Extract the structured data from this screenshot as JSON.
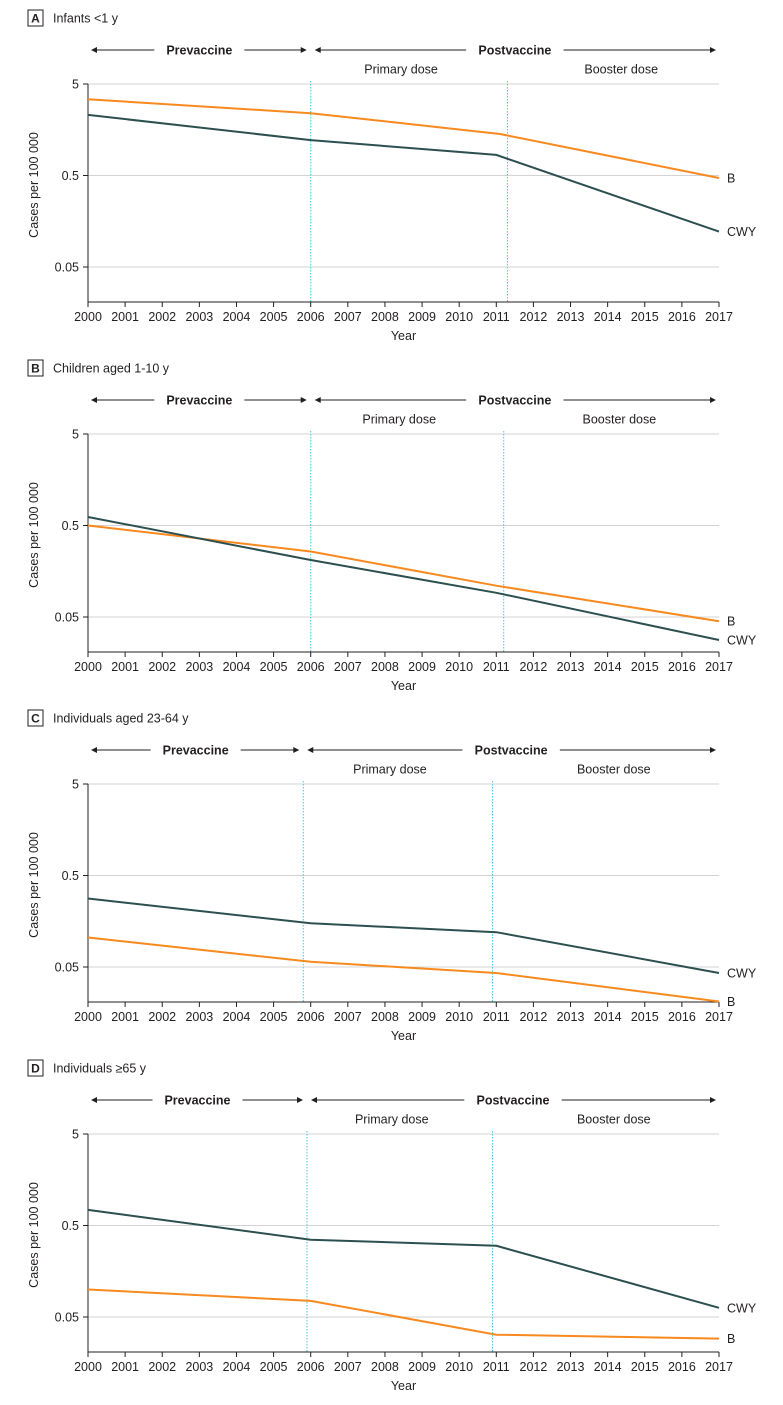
{
  "chart_data": [
    {
      "type": "line",
      "panel_label": "A",
      "title": "Infants <1 y",
      "xlabel": "Year",
      "ylabel": "Cases per 100 000",
      "y_scale": "log",
      "ylim": [
        0.02,
        5
      ],
      "yticks": [
        5,
        0.5,
        0.05
      ],
      "ytick_labels": [
        "5",
        "0.5",
        "0.05"
      ],
      "x": [
        2000,
        2001,
        2002,
        2003,
        2004,
        2005,
        2006,
        2007,
        2008,
        2009,
        2010,
        2011,
        2012,
        2013,
        2014,
        2015,
        2016,
        2017
      ],
      "x_tick_labels": [
        "2000",
        "2001",
        "2002",
        "2003",
        "2004",
        "2005",
        "2006",
        "2007",
        "2008",
        "2009",
        "2010",
        "2011",
        "2012",
        "2013",
        "2014",
        "2015",
        "2016",
        "2017"
      ],
      "period_labels": {
        "prevaccine": "Prevaccine",
        "postvaccine": "Postvaccine",
        "primary": "Primary dose",
        "booster": "Booster dose"
      },
      "vlines": [
        2006.0,
        2011.3
      ],
      "series": [
        {
          "name": "B",
          "color": "#f7891f",
          "points": [
            [
              2000,
              3.4
            ],
            [
              2006,
              2.4
            ],
            [
              2011.1,
              1.42
            ],
            [
              2017,
              0.47
            ]
          ]
        },
        {
          "name": "CWY",
          "color": "#2c4f50",
          "points": [
            [
              2000,
              2.3
            ],
            [
              2006,
              1.22
            ],
            [
              2011,
              0.84
            ],
            [
              2017,
              0.122
            ]
          ]
        }
      ]
    },
    {
      "type": "line",
      "panel_label": "B",
      "title": "Children aged 1-10 y",
      "xlabel": "Year",
      "ylabel": "Cases per 100 000",
      "y_scale": "log",
      "ylim": [
        0.02,
        5
      ],
      "yticks": [
        5,
        0.5,
        0.05
      ],
      "ytick_labels": [
        "5",
        "0.5",
        "0.05"
      ],
      "x": [
        2000,
        2001,
        2002,
        2003,
        2004,
        2005,
        2006,
        2007,
        2008,
        2009,
        2010,
        2011,
        2012,
        2013,
        2014,
        2015,
        2016,
        2017
      ],
      "x_tick_labels": [
        "2000",
        "2001",
        "2002",
        "2003",
        "2004",
        "2005",
        "2006",
        "2007",
        "2008",
        "2009",
        "2010",
        "2011",
        "2012",
        "2013",
        "2014",
        "2015",
        "2016",
        "2017"
      ],
      "period_labels": {
        "prevaccine": "Prevaccine",
        "postvaccine": "Postvaccine",
        "primary": "Primary dose",
        "booster": "Booster dose"
      },
      "vlines": [
        2006.0,
        2011.2
      ],
      "series": [
        {
          "name": "B",
          "color": "#f7891f",
          "points": [
            [
              2000,
              0.5
            ],
            [
              2006,
              0.26
            ],
            [
              2011,
              0.11
            ],
            [
              2017,
              0.045
            ]
          ]
        },
        {
          "name": "CWY",
          "color": "#2c4f50",
          "points": [
            [
              2000,
              0.62
            ],
            [
              2006,
              0.21
            ],
            [
              2011,
              0.092
            ],
            [
              2017,
              0.028
            ]
          ]
        }
      ]
    },
    {
      "type": "line",
      "panel_label": "C",
      "title": "Individuals aged 23-64 y",
      "xlabel": "Year",
      "ylabel": "Cases per 100 000",
      "y_scale": "log",
      "ylim": [
        0.02,
        5
      ],
      "yticks": [
        5,
        0.5,
        0.05
      ],
      "ytick_labels": [
        "5",
        "0.5",
        "0.05"
      ],
      "x": [
        2000,
        2001,
        2002,
        2003,
        2004,
        2005,
        2006,
        2007,
        2008,
        2009,
        2010,
        2011,
        2012,
        2013,
        2014,
        2015,
        2016,
        2017
      ],
      "x_tick_labels": [
        "2000",
        "2001",
        "2002",
        "2003",
        "2004",
        "2005",
        "2006",
        "2007",
        "2008",
        "2009",
        "2010",
        "2011",
        "2012",
        "2013",
        "2014",
        "2015",
        "2016",
        "2017"
      ],
      "period_labels": {
        "prevaccine": "Prevaccine",
        "postvaccine": "Postvaccine",
        "primary": "Primary dose",
        "booster": "Booster dose"
      },
      "vlines": [
        2005.8,
        2010.9
      ],
      "series": [
        {
          "name": "B",
          "color": "#f7891f",
          "points": [
            [
              2000,
              0.105
            ],
            [
              2006,
              0.057
            ],
            [
              2011,
              0.043
            ],
            [
              2017,
              0.021
            ]
          ]
        },
        {
          "name": "CWY",
          "color": "#2c4f50",
          "points": [
            [
              2000,
              0.28
            ],
            [
              2006,
              0.15
            ],
            [
              2011,
              0.12
            ],
            [
              2017,
              0.043
            ]
          ]
        }
      ]
    },
    {
      "type": "line",
      "panel_label": "D",
      "title": "Individuals ≥65 y",
      "xlabel": "Year",
      "ylabel": "Cases per 100 000",
      "y_scale": "log",
      "ylim": [
        0.02,
        5
      ],
      "yticks": [
        5,
        0.5,
        0.05
      ],
      "ytick_labels": [
        "5",
        "0.5",
        "0.05"
      ],
      "x": [
        2000,
        2001,
        2002,
        2003,
        2004,
        2005,
        2006,
        2007,
        2008,
        2009,
        2010,
        2011,
        2012,
        2013,
        2014,
        2015,
        2016,
        2017
      ],
      "x_tick_labels": [
        "2000",
        "2001",
        "2002",
        "2003",
        "2004",
        "2005",
        "2006",
        "2007",
        "2008",
        "2009",
        "2010",
        "2011",
        "2012",
        "2013",
        "2014",
        "2015",
        "2016",
        "2017"
      ],
      "period_labels": {
        "prevaccine": "Prevaccine",
        "postvaccine": "Postvaccine",
        "primary": "Primary dose",
        "booster": "Booster dose"
      },
      "vlines": [
        2005.9,
        2010.9
      ],
      "series": [
        {
          "name": "B",
          "color": "#f7891f",
          "points": [
            [
              2000,
              0.1
            ],
            [
              2006,
              0.075
            ],
            [
              2011,
              0.032
            ],
            [
              2017,
              0.029
            ]
          ]
        },
        {
          "name": "CWY",
          "color": "#2c4f50",
          "points": [
            [
              2000,
              0.74
            ],
            [
              2006,
              0.35
            ],
            [
              2011,
              0.3
            ],
            [
              2017,
              0.063
            ]
          ]
        }
      ]
    }
  ]
}
